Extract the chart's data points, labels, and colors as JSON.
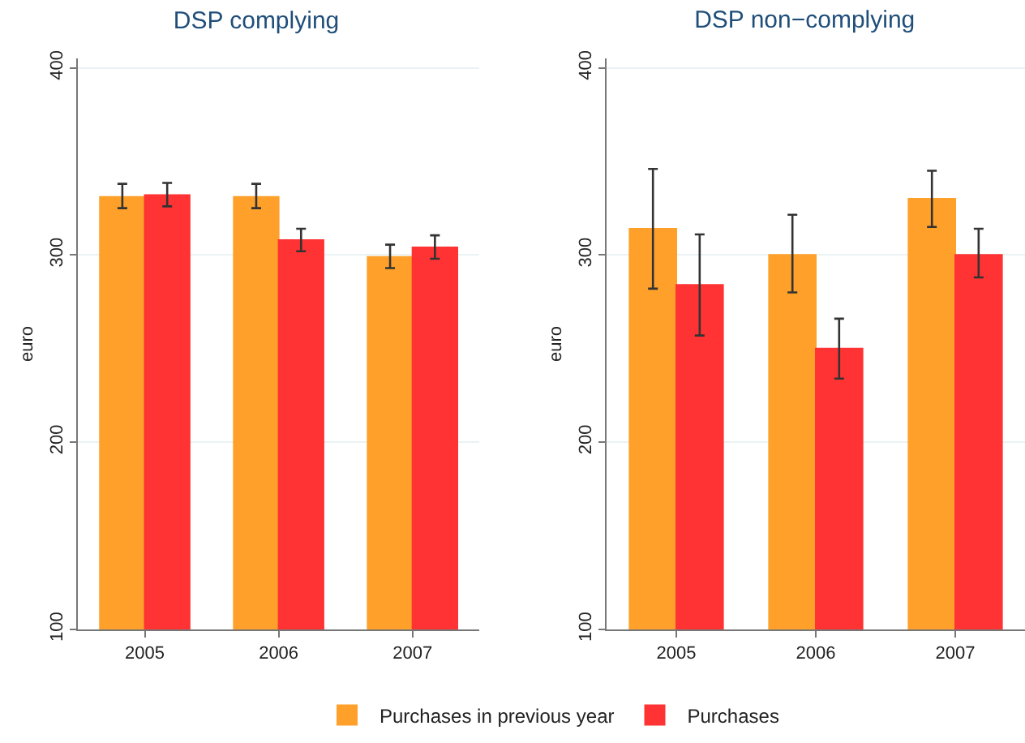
{
  "chart_data": [
    {
      "type": "bar",
      "title": "DSP complying",
      "ylabel": "euro",
      "categories": [
        "2005",
        "2006",
        "2007"
      ],
      "ylim": [
        100,
        405
      ],
      "yticks": [
        100,
        200,
        300,
        400
      ],
      "grid": "y",
      "legend": "bottom",
      "series": [
        {
          "name": "Purchases in previous year",
          "color": "#ffa02a",
          "values": [
            331,
            331,
            299
          ],
          "errors": [
            [
              325,
              338
            ],
            [
              325,
              338
            ],
            [
              293,
              305.5
            ]
          ]
        },
        {
          "name": "Purchases",
          "color": "#ff3333",
          "values": [
            332,
            308,
            304
          ],
          "errors": [
            [
              326,
              338.5
            ],
            [
              302,
              314
            ],
            [
              298,
              310.5
            ]
          ]
        }
      ]
    },
    {
      "type": "bar",
      "title": "DSP non−complying",
      "ylabel": "euro",
      "categories": [
        "2005",
        "2006",
        "2007"
      ],
      "ylim": [
        100,
        405
      ],
      "yticks": [
        100,
        200,
        300,
        400
      ],
      "grid": "y",
      "series": [
        {
          "color": "#ffa02a",
          "values": [
            314,
            300,
            330
          ],
          "errors": [
            [
              282,
              346
            ],
            [
              280,
              321.5
            ],
            [
              315,
              345
            ]
          ]
        },
        {
          "color": "#ff3333",
          "values": [
            284,
            250,
            300
          ],
          "errors": [
            [
              257,
              311
            ],
            [
              234,
              266
            ],
            [
              288,
              314
            ]
          ]
        }
      ]
    }
  ]
}
